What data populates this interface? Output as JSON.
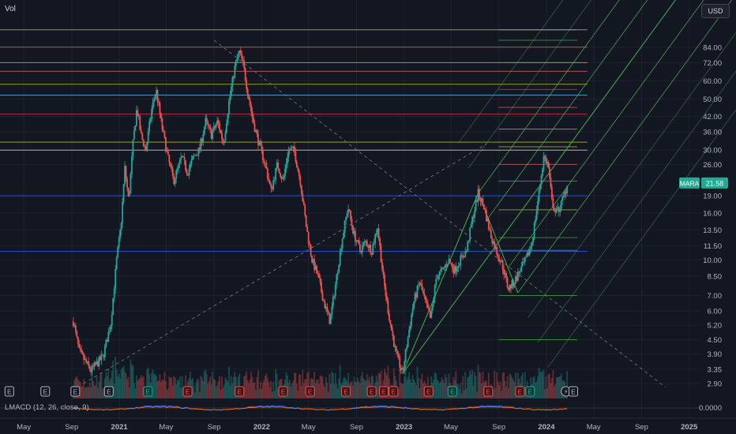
{
  "header": {
    "left_label": "Vol",
    "currency": "USD"
  },
  "indicator": {
    "label": "LMACD (12, 26, close, 9)",
    "value_label": "0.0000"
  },
  "price_marker": {
    "symbol": "MARA",
    "price": "21.58"
  },
  "chart_data": {
    "type": "candlestick",
    "scale": "log",
    "ylim": [
      2.6,
      115
    ],
    "xlim": [
      "2020-03-01",
      "2025-02-01"
    ],
    "ytick_labels": [
      "84.00",
      "72.00",
      "60.00",
      "50.00",
      "42.00",
      "36.00",
      "30.00",
      "26.00",
      "19.00",
      "16.00",
      "13.50",
      "11.50",
      "10.00",
      "8.50",
      "7.00",
      "6.00",
      "5.20",
      "4.50",
      "3.90",
      "3.35",
      "2.90"
    ],
    "ytick_values": [
      84,
      72,
      60,
      50,
      42,
      36,
      30,
      26,
      19,
      16,
      13.5,
      11.5,
      10,
      8.5,
      7,
      6,
      5.2,
      4.5,
      3.9,
      3.35,
      2.9
    ],
    "xtick_labels": [
      "May",
      "Sep",
      "2021",
      "May",
      "Sep",
      "2022",
      "May",
      "Sep",
      "2023",
      "May",
      "Sep",
      "2024",
      "May",
      "Sep",
      "2025"
    ],
    "xtick_dates": [
      "2020-05-01",
      "2020-09-01",
      "2021-01-01",
      "2021-05-01",
      "2021-09-01",
      "2022-01-01",
      "2022-05-01",
      "2022-09-01",
      "2023-01-01",
      "2023-05-01",
      "2023-09-01",
      "2024-01-01",
      "2024-05-01",
      "2024-09-01",
      "2025-01-01"
    ],
    "close_path": [
      [
        "2020-09-05",
        5.4
      ],
      [
        "2020-09-20",
        4.0
      ],
      [
        "2020-10-20",
        3.3
      ],
      [
        "2020-11-20",
        3.8
      ],
      [
        "2020-12-10",
        5.3
      ],
      [
        "2020-12-25",
        10.0
      ],
      [
        "2021-01-05",
        14.0
      ],
      [
        "2021-01-15",
        25.0
      ],
      [
        "2021-01-25",
        18.0
      ],
      [
        "2021-02-05",
        32.0
      ],
      [
        "2021-02-15",
        46.0
      ],
      [
        "2021-02-25",
        35.0
      ],
      [
        "2021-03-10",
        30.0
      ],
      [
        "2021-03-25",
        45.0
      ],
      [
        "2021-04-05",
        55.0
      ],
      [
        "2021-04-20",
        38.0
      ],
      [
        "2021-05-05",
        28.0
      ],
      [
        "2021-05-20",
        22.0
      ],
      [
        "2021-06-10",
        28.0
      ],
      [
        "2021-06-25",
        24.0
      ],
      [
        "2021-07-10",
        28.0
      ],
      [
        "2021-07-25",
        30.0
      ],
      [
        "2021-08-10",
        40.0
      ],
      [
        "2021-08-25",
        35.0
      ],
      [
        "2021-09-10",
        40.0
      ],
      [
        "2021-09-25",
        32.0
      ],
      [
        "2021-10-10",
        50.0
      ],
      [
        "2021-10-25",
        70.0
      ],
      [
        "2021-11-05",
        80.0
      ],
      [
        "2021-11-15",
        70.0
      ],
      [
        "2021-11-25",
        55.0
      ],
      [
        "2021-12-10",
        40.0
      ],
      [
        "2021-12-25",
        32.0
      ],
      [
        "2022-01-10",
        26.0
      ],
      [
        "2022-01-25",
        20.0
      ],
      [
        "2022-02-10",
        26.0
      ],
      [
        "2022-02-25",
        22.0
      ],
      [
        "2022-03-10",
        30.0
      ],
      [
        "2022-03-25",
        30.0
      ],
      [
        "2022-04-10",
        22.0
      ],
      [
        "2022-04-25",
        14.0
      ],
      [
        "2022-05-10",
        10.0
      ],
      [
        "2022-05-25",
        8.5
      ],
      [
        "2022-06-10",
        6.5
      ],
      [
        "2022-06-25",
        5.4
      ],
      [
        "2022-07-10",
        8.0
      ],
      [
        "2022-07-25",
        12.0
      ],
      [
        "2022-08-10",
        17.0
      ],
      [
        "2022-08-25",
        13.0
      ],
      [
        "2022-09-10",
        11.0
      ],
      [
        "2022-09-25",
        12.0
      ],
      [
        "2022-10-10",
        11.0
      ],
      [
        "2022-10-25",
        14.0
      ],
      [
        "2022-11-10",
        8.0
      ],
      [
        "2022-11-25",
        5.5
      ],
      [
        "2022-12-10",
        4.0
      ],
      [
        "2022-12-28",
        3.2
      ],
      [
        "2023-01-10",
        4.5
      ],
      [
        "2023-01-25",
        6.5
      ],
      [
        "2023-02-10",
        8.0
      ],
      [
        "2023-02-25",
        6.5
      ],
      [
        "2023-03-10",
        5.5
      ],
      [
        "2023-03-25",
        8.5
      ],
      [
        "2023-04-10",
        9.0
      ],
      [
        "2023-04-25",
        10.0
      ],
      [
        "2023-05-10",
        9.0
      ],
      [
        "2023-05-25",
        10.0
      ],
      [
        "2023-06-10",
        11.0
      ],
      [
        "2023-06-25",
        15.0
      ],
      [
        "2023-07-10",
        19.5
      ],
      [
        "2023-07-25",
        17.0
      ],
      [
        "2023-08-10",
        13.0
      ],
      [
        "2023-08-25",
        11.0
      ],
      [
        "2023-09-10",
        9.5
      ],
      [
        "2023-09-25",
        7.5
      ],
      [
        "2023-10-10",
        8.0
      ],
      [
        "2023-10-25",
        9.0
      ],
      [
        "2023-11-10",
        10.0
      ],
      [
        "2023-11-25",
        12.0
      ],
      [
        "2023-12-10",
        18.0
      ],
      [
        "2023-12-25",
        28.0
      ],
      [
        "2024-01-05",
        26.0
      ],
      [
        "2024-01-15",
        18.0
      ],
      [
        "2024-01-25",
        16.0
      ],
      [
        "2024-02-05",
        17.0
      ],
      [
        "2024-02-15",
        19.0
      ],
      [
        "2024-02-25",
        21.58
      ]
    ],
    "horizontal_lines": [
      {
        "price": 100,
        "color": "#c0ca33",
        "start": "2020-03-01",
        "end": "2024-04-15",
        "style": "solid"
      },
      {
        "price": 84,
        "color": "#e06666",
        "start": "2020-03-01",
        "end": "2024-04-15",
        "style": "solid"
      },
      {
        "price": 72,
        "color": "#c0ca33",
        "start": "2020-03-01",
        "end": "2024-04-15",
        "style": "solid"
      },
      {
        "price": 66,
        "color": "#e06666",
        "start": "2020-03-01",
        "end": "2024-04-15",
        "style": "solid"
      },
      {
        "price": 58,
        "color": "#c0ca33",
        "start": "2020-03-01",
        "end": "2024-04-15",
        "style": "solid"
      },
      {
        "price": 52,
        "color": "#4fc3f7",
        "start": "2020-03-01",
        "end": "2024-04-15",
        "style": "solid"
      },
      {
        "price": 43,
        "color": "#f23645",
        "start": "2020-03-01",
        "end": "2024-04-15",
        "style": "solid"
      },
      {
        "price": 32.5,
        "color": "#c0ca33",
        "start": "2020-03-01",
        "end": "2024-04-15",
        "style": "solid"
      },
      {
        "price": 30,
        "color": "#e0e0e0",
        "start": "2020-03-01",
        "end": "2024-04-15",
        "style": "solid"
      },
      {
        "price": 19,
        "color": "#2962ff",
        "start": "2020-03-01",
        "end": "2024-04-15",
        "style": "solid"
      },
      {
        "price": 10.9,
        "color": "#2962ff",
        "start": "2020-03-01",
        "end": "2024-04-15",
        "style": "solid"
      }
    ],
    "fib_levels": [
      {
        "price": 100,
        "color": "#9e9e9e"
      },
      {
        "price": 90,
        "color": "#4caf50"
      },
      {
        "price": 72,
        "color": "#4caf50"
      },
      {
        "price": 55,
        "color": "#f23645"
      },
      {
        "price": 46,
        "color": "#e06666"
      },
      {
        "price": 37,
        "color": "#c0ca33"
      },
      {
        "price": 31,
        "color": "#c0ca33"
      },
      {
        "price": 26,
        "color": "#e06666"
      },
      {
        "price": 22,
        "color": "#e06666"
      },
      {
        "price": 16.5,
        "color": "#c0ca33"
      },
      {
        "price": 12.5,
        "color": "#4caf50"
      },
      {
        "price": 11,
        "color": "#4caf50"
      },
      {
        "price": 7,
        "color": "#4caf50"
      },
      {
        "price": 4.5,
        "color": "#4caf50"
      }
    ],
    "pitchfork": {
      "pivot_a": [
        "2022-12-28",
        3.2
      ],
      "pivot_b": [
        "2023-07-10",
        19.5
      ],
      "pivot_c": [
        "2023-10-20",
        7.2
      ],
      "color": "#4caf50"
    },
    "events": [
      {
        "date": "2020-03-25",
        "type": "E"
      },
      {
        "date": "2020-06-25",
        "type": "E"
      },
      {
        "date": "2020-09-10",
        "type": "E"
      },
      {
        "date": "2020-12-05",
        "type": "E"
      },
      {
        "date": "2021-03-15",
        "type": "E",
        "kind": "earnings_up"
      },
      {
        "date": "2021-06-25",
        "type": "E",
        "kind": "earnings_down"
      },
      {
        "date": "2021-11-05",
        "type": "E",
        "kind": "earnings_down"
      },
      {
        "date": "2022-02-25",
        "type": "E",
        "kind": "earnings_down"
      },
      {
        "date": "2022-05-05",
        "type": "E",
        "kind": "earnings_down"
      },
      {
        "date": "2022-08-05",
        "type": "E",
        "kind": "earnings_down"
      },
      {
        "date": "2022-10-10",
        "type": "E",
        "kind": "earnings_down"
      },
      {
        "date": "2022-11-10",
        "type": "E",
        "kind": "earnings_down"
      },
      {
        "date": "2022-12-05",
        "type": "E",
        "kind": "earnings_down"
      },
      {
        "date": "2023-03-05",
        "type": "E",
        "kind": "earnings_down"
      },
      {
        "date": "2023-05-05",
        "type": "E",
        "kind": "earnings_up"
      },
      {
        "date": "2023-08-05",
        "type": "E",
        "kind": "earnings_down"
      },
      {
        "date": "2023-10-25",
        "type": "E",
        "kind": "earnings_down"
      },
      {
        "date": "2023-11-20",
        "type": "E",
        "kind": "earnings_up"
      },
      {
        "date": "2024-02-20",
        "type": "split"
      },
      {
        "date": "2024-03-10",
        "type": "E"
      }
    ]
  }
}
